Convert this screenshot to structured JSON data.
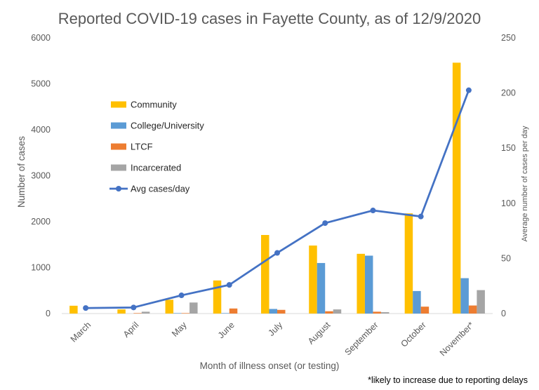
{
  "chart_data": {
    "type": "bar",
    "title": "Reported COVID-19 cases in Fayette County, as of 12/9/2020",
    "xlabel": "Month of illness onset (or testing)",
    "ylabel": "Number of cases",
    "y2label": "Average number of cases per day",
    "ylim": [
      0,
      6000
    ],
    "y2lim": [
      0,
      250
    ],
    "yticks": [
      "0",
      "1000",
      "2000",
      "3000",
      "4000",
      "5000",
      "6000"
    ],
    "y2ticks": [
      "0",
      "50",
      "100",
      "150",
      "200",
      "250"
    ],
    "categories": [
      "March",
      "April",
      "May",
      "June",
      "July",
      "August",
      "September",
      "October",
      "November*"
    ],
    "grid": false,
    "legend_position": "upper-left inside plot",
    "footnote": "*likely to increase due to reporting delays",
    "series": [
      {
        "name": "Community",
        "type": "bar",
        "axis": "left",
        "color": "#FFC000",
        "values": [
          170,
          90,
          300,
          720,
          1710,
          1480,
          1300,
          2180,
          5460
        ]
      },
      {
        "name": "College/University",
        "type": "bar",
        "axis": "left",
        "color": "#5B9BD5",
        "values": [
          0,
          0,
          10,
          10,
          100,
          1100,
          1260,
          490,
          770
        ]
      },
      {
        "name": "LTCF",
        "type": "bar",
        "axis": "left",
        "color": "#ED7D31",
        "values": [
          0,
          10,
          10,
          110,
          80,
          50,
          40,
          150,
          175
        ]
      },
      {
        "name": "Incarcerated",
        "type": "bar",
        "axis": "left",
        "color": "#A5A5A5",
        "values": [
          0,
          40,
          240,
          0,
          0,
          90,
          30,
          0,
          510
        ]
      },
      {
        "name": "Avg cases/day",
        "type": "line",
        "axis": "right",
        "color": "#4472C4",
        "values": [
          5,
          5.5,
          16.5,
          26,
          55,
          82,
          93.5,
          88,
          202.5
        ]
      }
    ]
  }
}
